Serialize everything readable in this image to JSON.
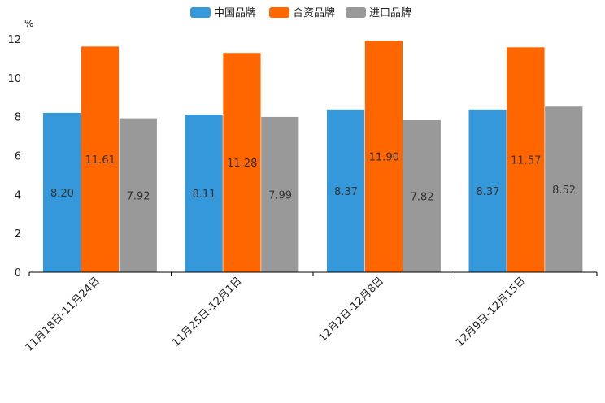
{
  "chart_data": {
    "type": "bar",
    "unit": "%",
    "categories": [
      "11月18日-11月24日",
      "11月25日-12月1日",
      "12月2日-12月8日",
      "12月9日-12月15日"
    ],
    "series": [
      {
        "name": "中国品牌",
        "color": "#3498db",
        "values": [
          8.2,
          8.11,
          8.37,
          8.37
        ],
        "labels": [
          "8.20",
          "8.11",
          "8.37",
          "8.37"
        ]
      },
      {
        "name": "合资品牌",
        "color": "#ff6600",
        "values": [
          11.61,
          11.28,
          11.9,
          11.57
        ],
        "labels": [
          "11.61",
          "11.28",
          "11.90",
          "11.57"
        ]
      },
      {
        "name": "进口品牌",
        "color": "#999999",
        "values": [
          7.92,
          7.99,
          7.82,
          8.52
        ],
        "labels": [
          "7.92",
          "7.99",
          "7.82",
          "8.52"
        ]
      }
    ],
    "ylim": [
      0,
      12
    ],
    "yticks": [
      "0",
      "2",
      "4",
      "6",
      "8",
      "10",
      "12"
    ],
    "legend_position": "top-center",
    "grid": false
  }
}
